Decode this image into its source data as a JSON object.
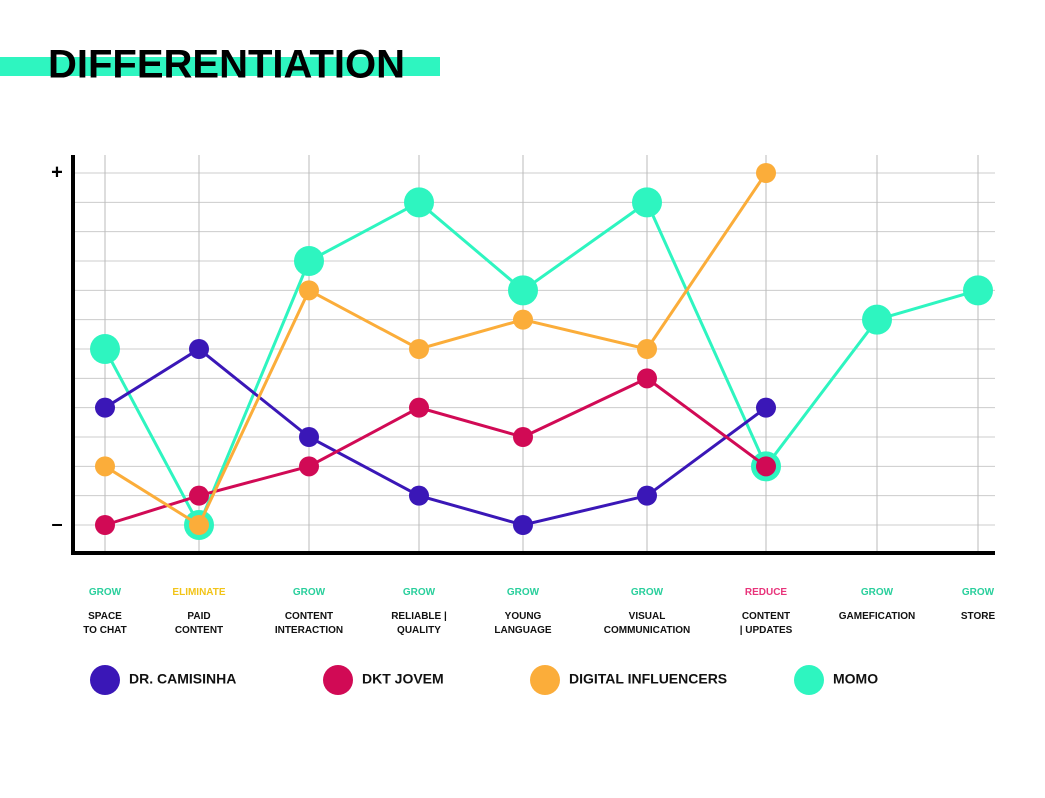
{
  "chart_data": {
    "type": "line",
    "title": "DIFFERENTIATION",
    "categories": [
      "SPACE\nTO CHAT",
      "PAID\nCONTENT",
      "CONTENT\nINTERACTION",
      "RELIABLE |\nQUALITY",
      "YOUNG\nLANGUAGE",
      "VISUAL\nCOMMUNICATION",
      "CONTENT\n| UPDATES",
      "GAMEFICATION",
      "STORE"
    ],
    "actions": [
      "GROW",
      "ELIMINATE",
      "GROW",
      "GROW",
      "GROW",
      "GROW",
      "REDUCE",
      "GROW",
      "GROW"
    ],
    "action_colors": {
      "GROW": "#29cf9c",
      "ELIMINATE": "#f2c418",
      "REDUCE": "#e8337a"
    },
    "series": [
      {
        "name": "DR. CAMISINHA",
        "color": "#3a17b7",
        "values": [
          4,
          6,
          3,
          1,
          0,
          1,
          4,
          null,
          null
        ]
      },
      {
        "name": "DKT JOVEM",
        "color": "#d10a55",
        "values": [
          0,
          1,
          2,
          4,
          3,
          5,
          2,
          null,
          null
        ]
      },
      {
        "name": "DIGITAL INFLUENCERS",
        "color": "#fbad3a",
        "values": [
          2,
          0,
          8,
          6,
          7,
          6,
          12,
          null,
          null
        ]
      },
      {
        "name": "MOMO",
        "color": "#2ef5c0",
        "values": [
          6,
          0,
          9,
          11,
          8,
          11,
          2,
          7,
          8
        ]
      }
    ],
    "ylim": [
      0,
      12
    ],
    "yticks": [
      {
        "value": 0,
        "label": "–"
      },
      {
        "value": 12,
        "label": "+"
      }
    ],
    "ygrid": [
      0,
      1,
      2,
      3,
      4,
      5,
      6,
      7,
      8,
      9,
      10,
      11,
      12
    ],
    "grid": true
  }
}
